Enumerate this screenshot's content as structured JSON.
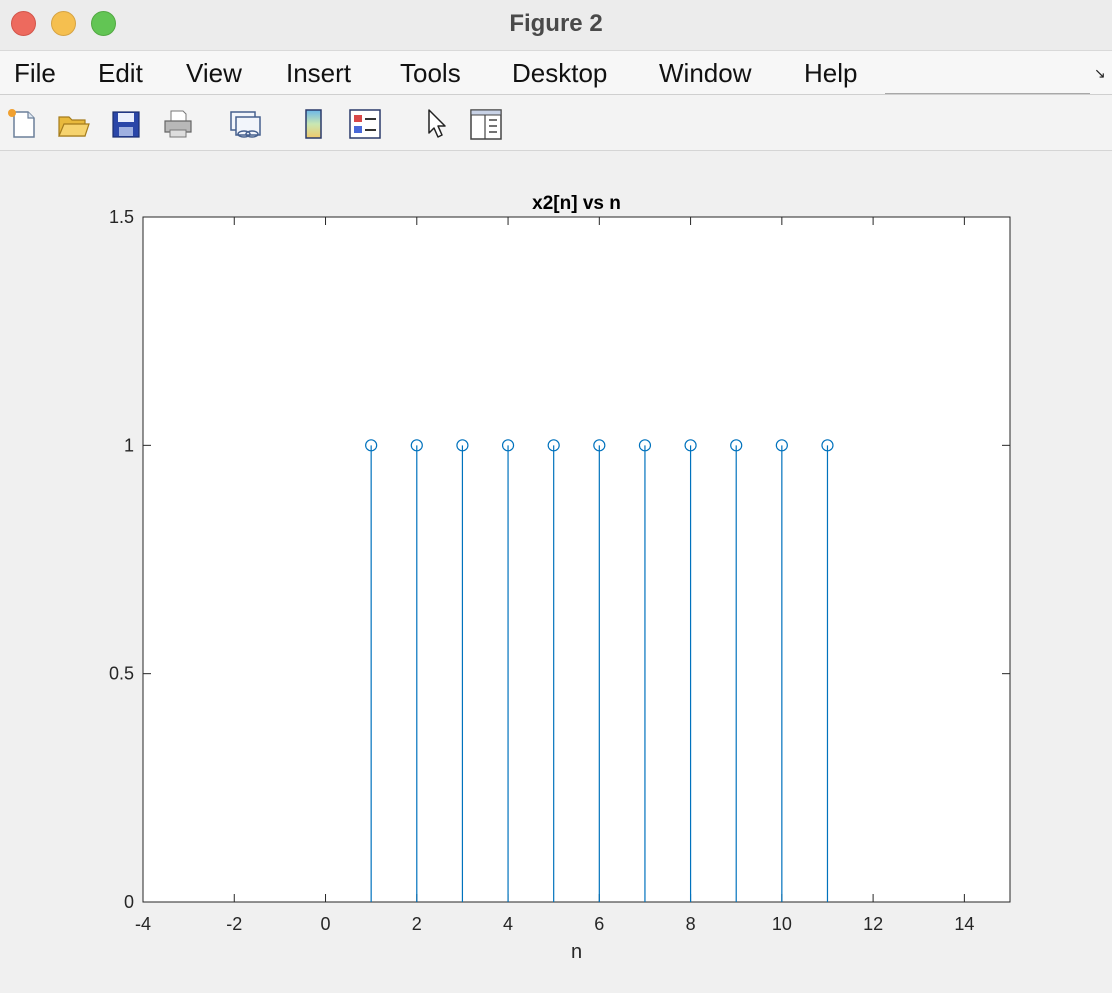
{
  "window": {
    "title": "Figure 2"
  },
  "menu": [
    "File",
    "Edit",
    "View",
    "Insert",
    "Tools",
    "Desktop",
    "Window",
    "Help"
  ],
  "toolbar": {
    "icons": [
      "new-figure-icon",
      "open-file-icon",
      "save-icon",
      "print-icon",
      "link-plot-icon",
      "colorbar-icon",
      "legend-icon",
      "pointer-icon",
      "property-inspector-icon"
    ]
  },
  "colors": {
    "stem": "#0072bd",
    "axes_bg": "#ffffff",
    "figure_bg": "#f0f0f0"
  },
  "chart_data": {
    "type": "stem",
    "title": "x2[n] vs n",
    "xlabel": "n",
    "ylabel": "",
    "xlim": [
      -4,
      15
    ],
    "ylim": [
      0,
      1.5
    ],
    "xticks": [
      -4,
      -2,
      0,
      2,
      4,
      6,
      8,
      10,
      12,
      14
    ],
    "yticks": [
      0,
      0.5,
      1,
      1.5
    ],
    "x": [
      1,
      2,
      3,
      4,
      5,
      6,
      7,
      8,
      9,
      10,
      11
    ],
    "y": [
      1,
      1,
      1,
      1,
      1,
      1,
      1,
      1,
      1,
      1,
      1
    ],
    "grid": false,
    "marker": "o"
  }
}
